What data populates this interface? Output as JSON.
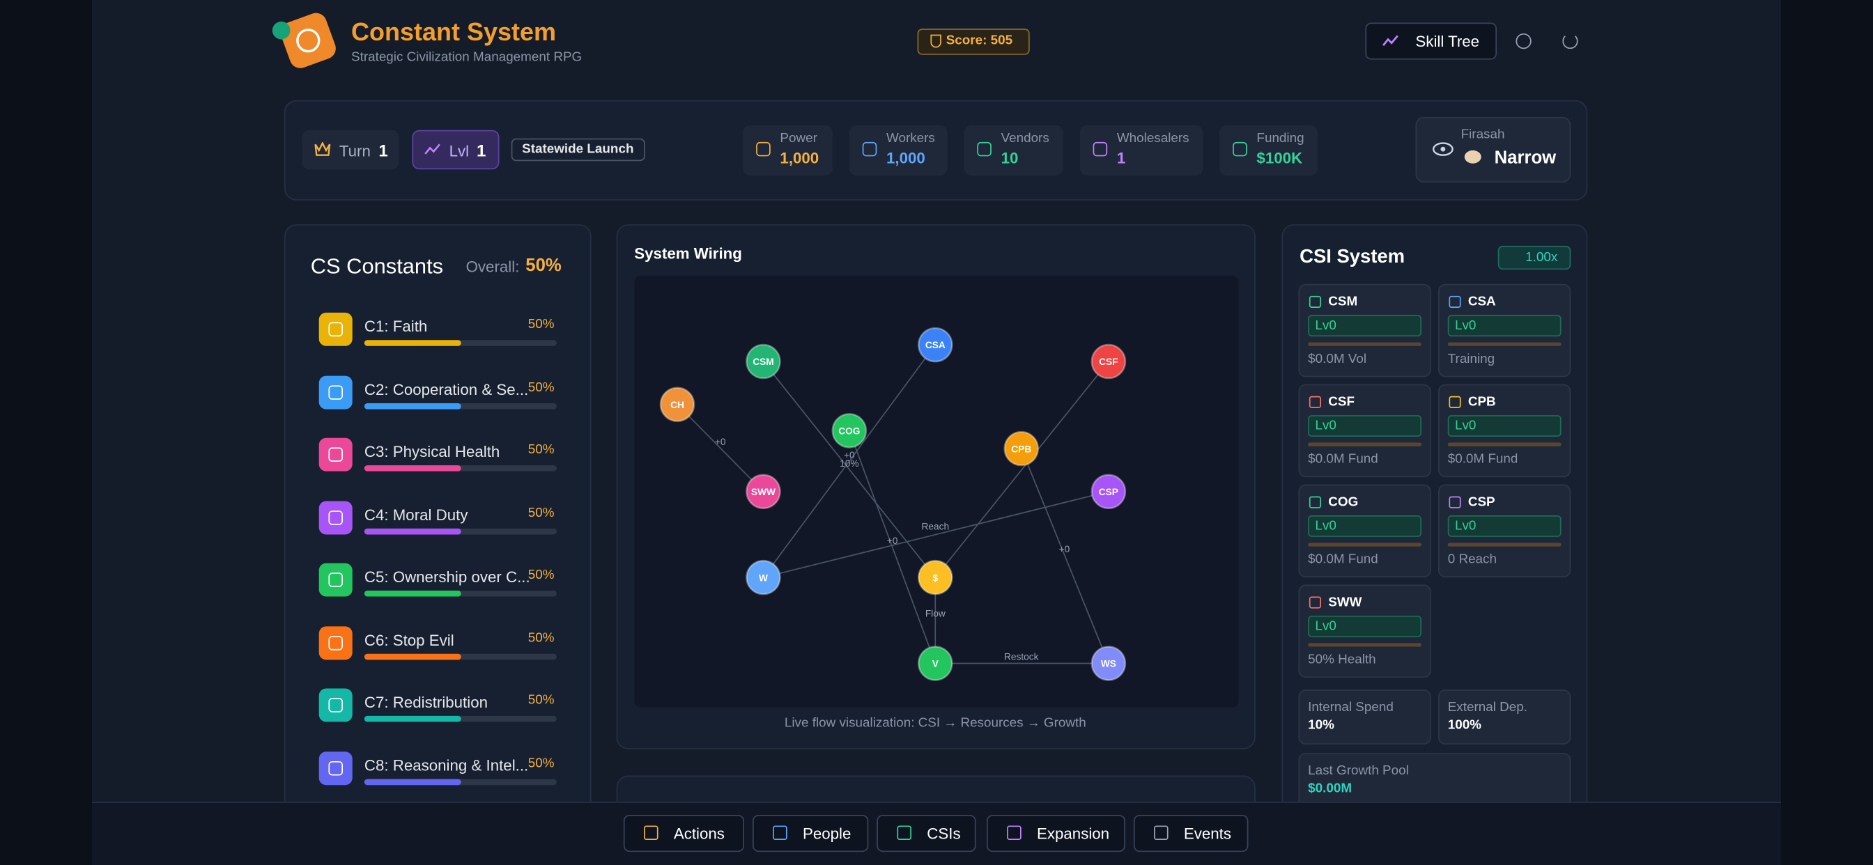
{
  "header": {
    "title": "Constant System",
    "subtitle": "Strategic Civilization Management RPG",
    "score": "Score: 505",
    "skill_tree": "Skill Tree"
  },
  "status": {
    "turn_label": "Turn",
    "turn": 1,
    "level_label": "Lvl",
    "level": 1,
    "stage": "Statewide Launch",
    "resources": [
      {
        "label": "Power",
        "value": "1,000"
      },
      {
        "label": "Workers",
        "value": "1,000"
      },
      {
        "label": "Vendors",
        "value": "10"
      },
      {
        "label": "Wholesalers",
        "value": "1"
      },
      {
        "label": "Funding",
        "value": "$100K"
      }
    ],
    "firasah_label": "Firasah",
    "firasah": "Narrow"
  },
  "constants": {
    "title": "CS Constants",
    "overall_label": "Overall:",
    "overall": "50%",
    "items": [
      {
        "name": "C1: Faith",
        "value": 50,
        "value_label": "50%"
      },
      {
        "name": "C2: Cooperation & Se...",
        "value": 50,
        "value_label": "50%"
      },
      {
        "name": "C3: Physical Health",
        "value": 50,
        "value_label": "50%"
      },
      {
        "name": "C4: Moral Duty",
        "value": 50,
        "value_label": "50%"
      },
      {
        "name": "C5: Ownership over C...",
        "value": 50,
        "value_label": "50%"
      },
      {
        "name": "C6: Stop Evil",
        "value": 50,
        "value_label": "50%"
      },
      {
        "name": "C7: Redistribution",
        "value": 50,
        "value_label": "50%"
      },
      {
        "name": "C8: Reasoning & Intel...",
        "value": 50,
        "value_label": "50%"
      }
    ]
  },
  "wiring": {
    "title": "System Wiring",
    "nodes": [
      "CH",
      "CSM",
      "CSA",
      "CSF",
      "COG",
      "CPB",
      "SWW",
      "CSP",
      "W",
      "$",
      "V",
      "WS"
    ],
    "edge_labels": [
      "+0",
      "+0",
      "10%",
      "Reach",
      "+0",
      "+0",
      "Flow",
      "Restock"
    ],
    "caption": "Live flow visualization: CSI → Resources → Growth"
  },
  "csi": {
    "title": "CSI System",
    "multiplier": "1.00x",
    "cards": [
      {
        "name": "CSM",
        "level": "Lv0",
        "stat": "$0.0M Vol"
      },
      {
        "name": "CSA",
        "level": "Lv0",
        "stat": "Training"
      },
      {
        "name": "CSF",
        "level": "Lv0",
        "stat": "$0.0M Fund"
      },
      {
        "name": "CPB",
        "level": "Lv0",
        "stat": "$0.0M Fund"
      },
      {
        "name": "COG",
        "level": "Lv0",
        "stat": "$0.0M Fund"
      },
      {
        "name": "CSP",
        "level": "Lv0",
        "stat": "0 Reach"
      },
      {
        "name": "SWW",
        "level": "Lv0",
        "stat": "50% Health"
      }
    ],
    "internal_spend_label": "Internal Spend",
    "internal_spend": "10%",
    "external_dep_label": "External Dep.",
    "external_dep": "100%",
    "growth_pool_label": "Last Growth Pool",
    "growth_pool": "$0.00M"
  },
  "nav": [
    "Actions",
    "People",
    "CSIs",
    "Expansion",
    "Events"
  ]
}
